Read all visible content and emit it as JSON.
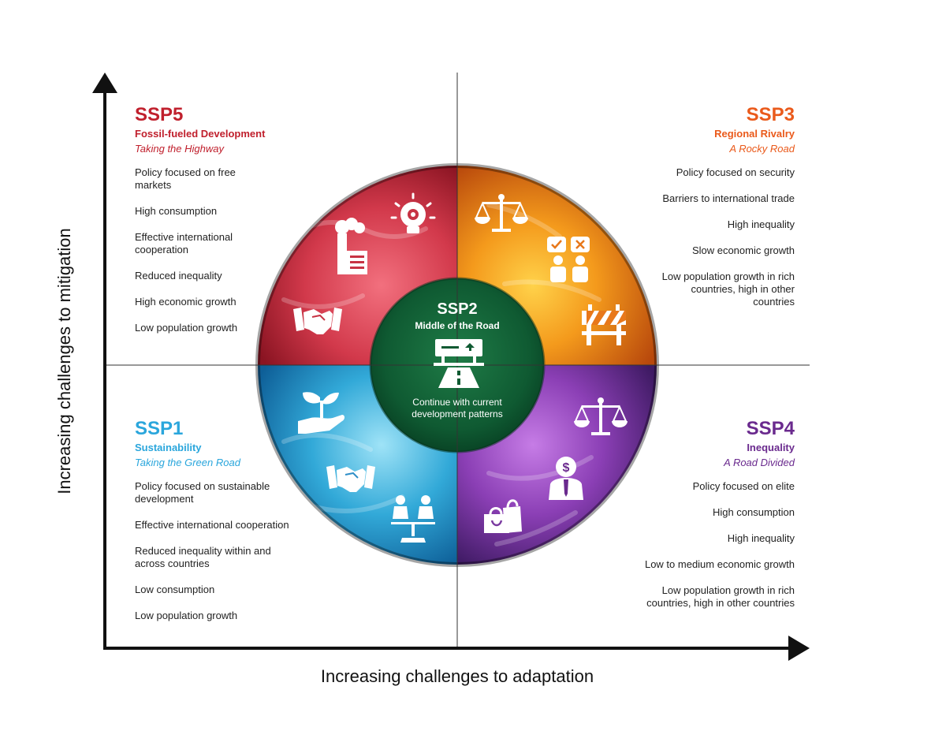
{
  "axes": {
    "x_label": "Increasing challenges to adaptation",
    "y_label": "Increasing challenges to mitigation"
  },
  "colors": {
    "ssp5": "#c0202d",
    "ssp3": "#ea5a1b",
    "ssp1": "#2aa6dc",
    "ssp4": "#6a2a8e",
    "ssp2": "#0f5b33"
  },
  "ssp5": {
    "title": "SSP5",
    "name": "Fossil-fueled Development",
    "tagline": "Taking the Highway",
    "items": [
      "Policy focused on free markets",
      "High consumption",
      "Effective international cooperation",
      "Reduced inequality",
      "High economic growth",
      "Low population growth"
    ],
    "icons": [
      "lightbulb-gear-icon",
      "factory-icon",
      "handshake-icon"
    ]
  },
  "ssp3": {
    "title": "SSP3",
    "name": "Regional Rivalry",
    "tagline": "A Rocky Road",
    "items": [
      "Policy focused on security",
      "Barriers to international trade",
      "High inequality",
      "Slow economic growth",
      "Low population growth in rich countries, high in other countries"
    ],
    "icons": [
      "scales-icon",
      "people-vote-icon",
      "road-barrier-icon"
    ]
  },
  "ssp1": {
    "title": "SSP1",
    "name": "Sustainability",
    "tagline": "Taking the Green Road",
    "items": [
      "Policy focused on sustainable development",
      "Effective international cooperation",
      "Reduced inequality within and across countries",
      "Low consumption",
      "Low population growth"
    ],
    "icons": [
      "plant-in-hand-icon",
      "handshake-icon",
      "equal-people-icon"
    ]
  },
  "ssp4": {
    "title": "SSP4",
    "name": "Inequality",
    "tagline": "A Road Divided",
    "items": [
      "Policy focused on elite",
      "High consumption",
      "High inequality",
      "Low to medium economic growth",
      "Low population growth in rich countries, high in other countries"
    ],
    "icons": [
      "scales-icon",
      "rich-person-icon",
      "shopping-bags-icon"
    ]
  },
  "ssp2": {
    "title": "SSP2",
    "name": "Middle of the Road",
    "description": "Continue with current development patterns",
    "icon": "road-sign-icon"
  }
}
